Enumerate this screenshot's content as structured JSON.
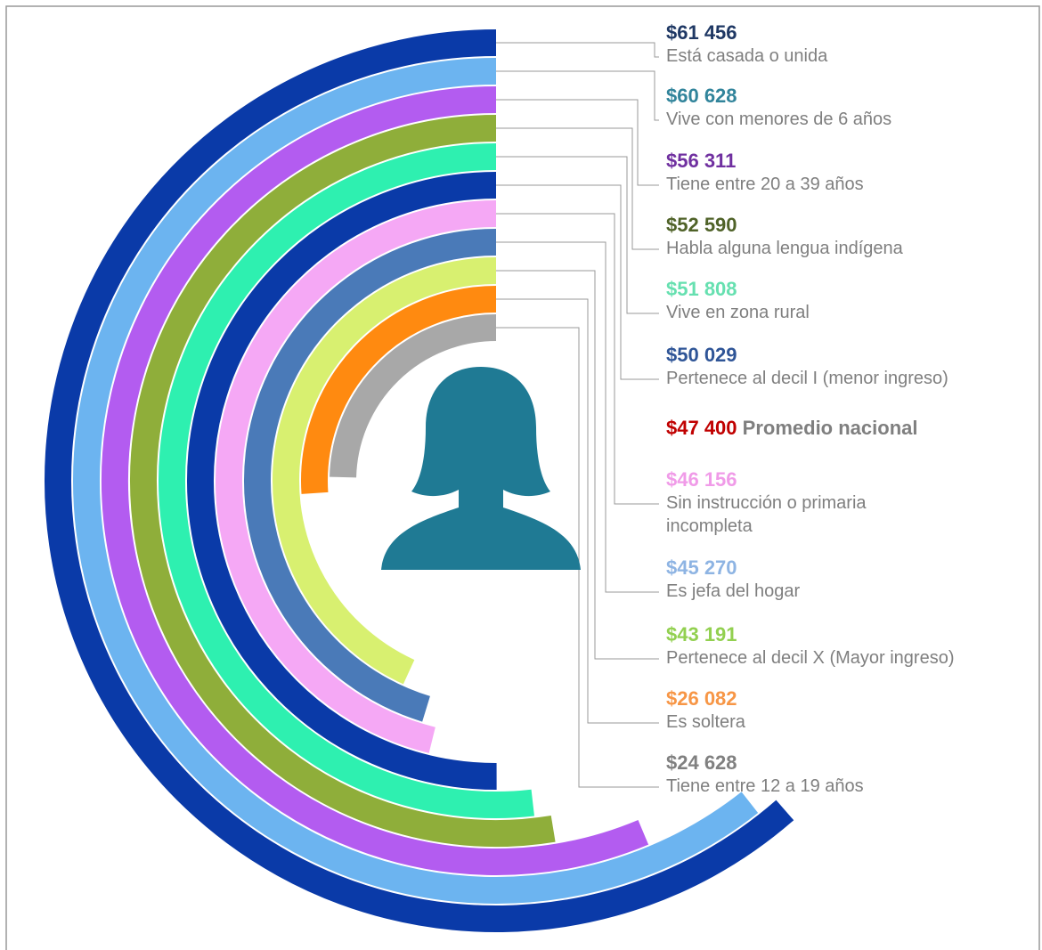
{
  "chart_data": {
    "type": "radial_bar",
    "categories": [
      "Está casada o unida",
      "Vive con menores de 6 años",
      "Tiene entre 20 a 39 años",
      "Habla alguna lengua indígena",
      "Vive en zona rural",
      "Pertenece al decil I (menor ingreso)",
      "Sin instrucción o primaria\nincompleta",
      "Es jefa del hogar",
      "Pertenece al decil X (Mayor ingreso)",
      "Es soltera",
      "Tiene entre 12 a 19 años"
    ],
    "values": [
      61456,
      60628,
      56311,
      52590,
      51808,
      50029,
      46156,
      45270,
      43191,
      26082,
      24628
    ],
    "value_labels": [
      "$61 456",
      "$60 628",
      "$56 311",
      "$52 590",
      "$51 808",
      "$50 029",
      "$46 156",
      "$45 270",
      "$43 191",
      "$26 082",
      "$24 628"
    ],
    "colors": [
      "#0a3aa8",
      "#6cb4f0",
      "#b35cf0",
      "#8fae3a",
      "#2ef0b0",
      "#0a3aa8",
      "#f5a8f5",
      "#4a7ab8",
      "#d8f070",
      "#ff8a10",
      "#a8a8a8"
    ],
    "label_colors": [
      "#1f3864",
      "#31849b",
      "#7030a0",
      "#4f6228",
      "#66e0b0",
      "#2f5597",
      "#f09be8",
      "#8eb4e3",
      "#92d050",
      "#f79646",
      "#808080"
    ],
    "ylim": [
      0,
      100000
    ],
    "average": {
      "value": 47400,
      "label": "$47 400",
      "text": "Promedio nacional",
      "color": "#c00000"
    }
  }
}
